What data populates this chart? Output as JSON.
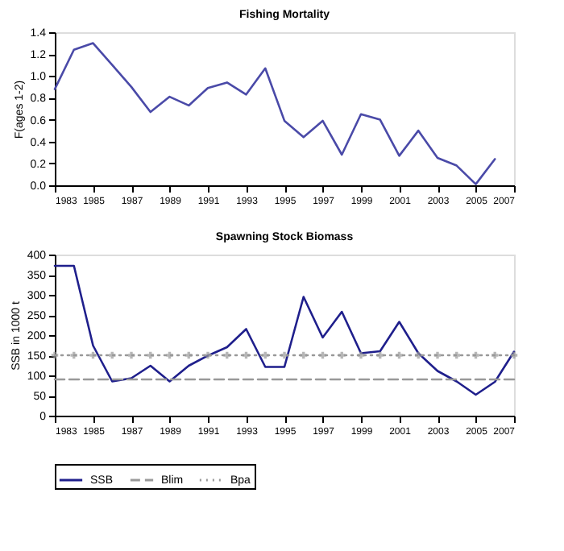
{
  "chart_data": [
    {
      "type": "line",
      "title": "Fishing Mortality",
      "ylabel": "F(ages 1-2)",
      "x": [
        1983,
        1984,
        1985,
        1986,
        1987,
        1988,
        1989,
        1990,
        1991,
        1992,
        1993,
        1994,
        1995,
        1996,
        1997,
        1998,
        1999,
        2000,
        2001,
        2002,
        2003,
        2004,
        2005,
        2006
      ],
      "series": [
        {
          "color": "#4a4aa8",
          "values": [
            0.88,
            1.24,
            1.3,
            1.1,
            0.9,
            0.67,
            0.81,
            0.73,
            0.89,
            0.94,
            0.83,
            1.07,
            0.59,
            0.44,
            0.59,
            0.28,
            0.65,
            0.6,
            0.27,
            0.5,
            0.25,
            0.18,
            0.01,
            0.24
          ]
        }
      ],
      "xlim": [
        1983,
        2007
      ],
      "xticks": [
        1983,
        1985,
        1987,
        1989,
        1991,
        1993,
        1995,
        1997,
        1999,
        2001,
        2003,
        2005,
        2007
      ],
      "ylim": [
        0,
        1.4
      ],
      "yticks": [
        {
          "value": 0,
          "label": "0.0"
        },
        0.2,
        0.4,
        0.6,
        0.8,
        {
          "value": 1,
          "label": "1.0"
        },
        1.2,
        1.4
      ],
      "grid": false,
      "legend": false
    },
    {
      "type": "line",
      "title": "Spawning Stock Biomass",
      "ylabel": "SSB in 1000 t",
      "x": [
        1983,
        1984,
        1985,
        1986,
        1987,
        1988,
        1989,
        1990,
        1991,
        1992,
        1993,
        1994,
        1995,
        1996,
        1997,
        1998,
        1999,
        2000,
        2001,
        2002,
        2003,
        2004,
        2005,
        2006,
        2007
      ],
      "series": [
        {
          "name": "SSB",
          "color": "#1f1f8c",
          "line_style": "solid",
          "values": [
            372,
            372,
            174,
            85,
            93,
            124,
            85,
            124,
            149,
            170,
            215,
            121,
            121,
            295,
            194,
            258,
            155,
            160,
            233,
            155,
            111,
            85,
            52,
            84,
            159
          ]
        },
        {
          "name": "Blim",
          "color": "#999999",
          "line_style": "dashed",
          "values": [
            90,
            90,
            90,
            90,
            90,
            90,
            90,
            90,
            90,
            90,
            90,
            90,
            90,
            90,
            90,
            90,
            90,
            90,
            90,
            90,
            90,
            90,
            90,
            90,
            90
          ]
        },
        {
          "name": "Bpa",
          "color": "#999999",
          "line_style": "dotted",
          "marker": "cross",
          "values": [
            150,
            150,
            150,
            150,
            150,
            150,
            150,
            150,
            150,
            150,
            150,
            150,
            150,
            150,
            150,
            150,
            150,
            150,
            150,
            150,
            150,
            150,
            150,
            150,
            150
          ]
        }
      ],
      "xlim": [
        1983,
        2007
      ],
      "xticks": [
        1983,
        1985,
        1987,
        1989,
        1991,
        1993,
        1995,
        1997,
        1999,
        2001,
        2003,
        2005,
        2007
      ],
      "ylim": [
        0,
        400
      ],
      "yticks": [
        0,
        50,
        100,
        150,
        200,
        250,
        300,
        350,
        400
      ],
      "grid": false,
      "legend": "bottom"
    }
  ]
}
